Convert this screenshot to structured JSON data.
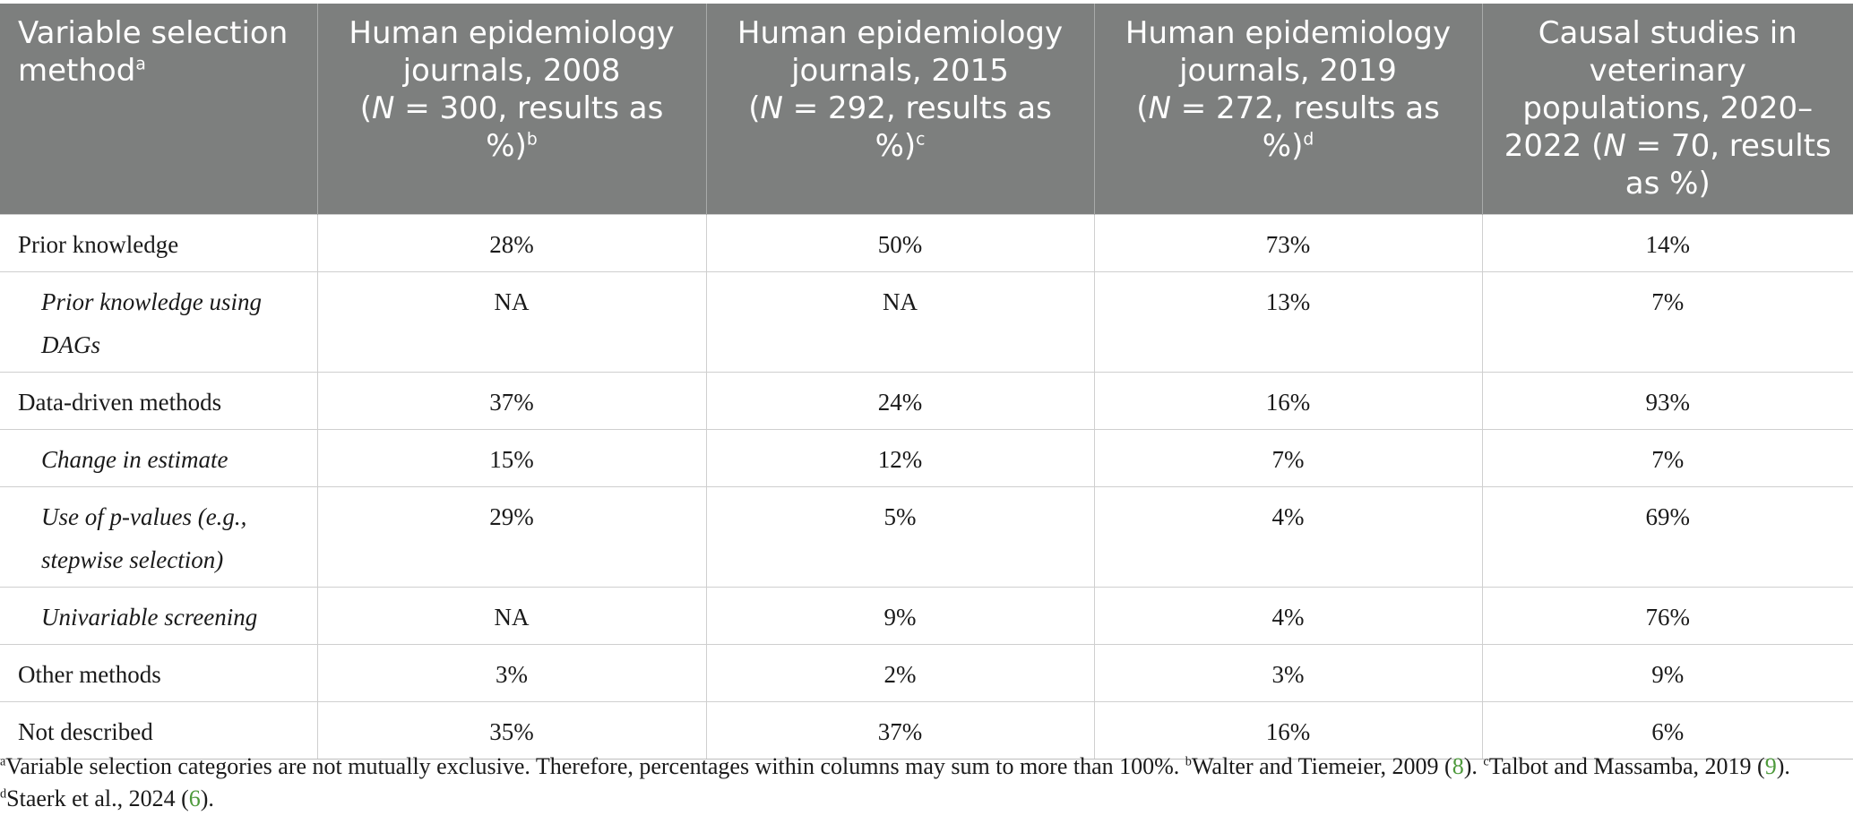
{
  "table": {
    "header": {
      "col0": {
        "text": "Variable selection method",
        "sup": "a"
      },
      "col1": {
        "line1": "Human epidemiology",
        "line2": "journals, 2008",
        "line3_pre": "(",
        "n_symbol": "N",
        "line3_post": " = 300, results as %)",
        "sup": "b"
      },
      "col2": {
        "line1": "Human epidemiology",
        "line2": "journals, 2015",
        "line3_pre": "(",
        "n_symbol": "N",
        "line3_post": " = 292, results as %)",
        "sup": "c"
      },
      "col3": {
        "line1": "Human epidemiology",
        "line2": "journals, 2019",
        "line3_pre": "(",
        "n_symbol": "N",
        "line3_post": " = 272, results as %)",
        "sup": "d"
      },
      "col4": {
        "line1": "Causal studies in",
        "line2": "veterinary",
        "line3": "populations, 2020–",
        "line4_pre": "2022 (",
        "n_symbol": "N",
        "line4_post": " = 70, results",
        "line5": "as %)"
      }
    },
    "rows": [
      {
        "label": "Prior knowledge",
        "values": [
          "28%",
          "50%",
          "73%",
          "14%"
        ]
      },
      {
        "label": "Prior knowledge using DAGs",
        "values": [
          "NA",
          "NA",
          "13%",
          "7%"
        ]
      },
      {
        "label": "Data-driven methods",
        "values": [
          "37%",
          "24%",
          "16%",
          "93%"
        ]
      },
      {
        "label": "Change in estimate",
        "values": [
          "15%",
          "12%",
          "7%",
          "7%"
        ]
      },
      {
        "label": "Use of p-values (e.g., stepwise selection)",
        "values": [
          "29%",
          "5%",
          "4%",
          "69%"
        ]
      },
      {
        "label": "Univariable screening",
        "values": [
          "NA",
          "9%",
          "4%",
          "76%"
        ]
      },
      {
        "label": "Other methods",
        "values": [
          "3%",
          "2%",
          "3%",
          "9%"
        ]
      },
      {
        "label": "Not described",
        "values": [
          "35%",
          "37%",
          "16%",
          "6%"
        ]
      }
    ]
  },
  "footnotes": {
    "a_sup": "a",
    "a_text": "Variable selection categories are not mutually exclusive. Therefore, percentages within columns may sum to more than 100%. ",
    "b_sup": "b",
    "b_text": "Walter and Tiemeier, 2009 (",
    "b_ref": "8",
    "b_close": "). ",
    "c_sup": "c",
    "c_text": "Talbot and Massamba, 2019 (",
    "c_ref": "9",
    "c_close": ").",
    "d_sup": "d",
    "d_text": "Staerk et al., 2024 (",
    "d_ref": "6",
    "d_close": ")."
  },
  "colors": {
    "header_bg": "#7d7f7e",
    "citation_link": "#4e9a3c"
  }
}
